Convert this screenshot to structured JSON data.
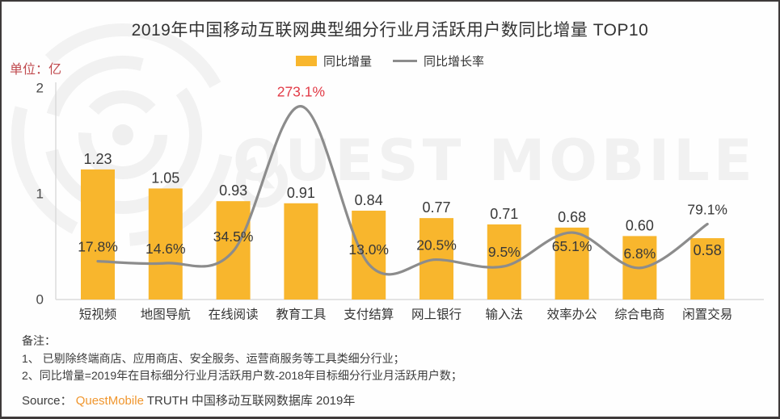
{
  "page": {
    "title": "2019年中国移动互联网典型细分行业月活跃用户数同比增量 TOP10",
    "unit_label": "单位：亿"
  },
  "legend": {
    "bar_label": "同比增量",
    "line_label": "同比增长率"
  },
  "watermark": {
    "text": "QUEST MOBILE"
  },
  "colors": {
    "bar": "#F8B62D",
    "line": "#8C8C8C",
    "highlight": "#E23B47",
    "unit_label": "#C04A4E",
    "brand_orange": "#F0962E",
    "axis": "#DBDBDB",
    "text": "#3C3C3C"
  },
  "chart_data": {
    "type": "bar",
    "combo": "bar+line",
    "title": "2019年中国移动互联网典型细分行业月活跃用户数同比增量 TOP10",
    "categories": [
      "短视频",
      "地图导航",
      "在线阅读",
      "教育工具",
      "支付结算",
      "网上银行",
      "输入法",
      "效率办公",
      "综合电商",
      "闲置交易"
    ],
    "series": [
      {
        "name": "同比增量",
        "type": "bar",
        "unit": "亿",
        "values": [
          1.23,
          1.05,
          0.93,
          0.91,
          0.84,
          0.77,
          0.71,
          0.68,
          0.6,
          0.58
        ],
        "labels": [
          "1.23",
          "1.05",
          "0.93",
          "0.91",
          "0.84",
          "0.77",
          "0.71",
          "0.68",
          "0.60",
          "0.58"
        ]
      },
      {
        "name": "同比增长率",
        "type": "line",
        "unit": "%",
        "values": [
          17.8,
          14.6,
          34.5,
          273.1,
          13.0,
          20.5,
          9.5,
          65.1,
          6.8,
          79.1
        ],
        "labels": [
          "17.8%",
          "14.6%",
          "34.5%",
          "273.1%",
          "13.0%",
          "20.5%",
          "9.5%",
          "65.1%",
          "6.8%",
          "79.1%"
        ],
        "highlight_index": 3
      }
    ],
    "ylabel": "单位：亿",
    "ylim": [
      0,
      2
    ],
    "yticks": [
      0,
      1,
      2
    ],
    "ytick_labels": [
      "0",
      "1",
      "2"
    ],
    "grid": false,
    "legend_position": "top-center"
  },
  "notes": {
    "heading": "备注：",
    "items": [
      "1、 已剔除终端商店、应用商店、安全服务、运营商服务等工具类细分行业；",
      "2、同比增量=2019年在目标细分行业月活跃用户数-2018年目标细分行业月活跃用户数；"
    ]
  },
  "source": {
    "prefix": "Source：",
    "brand": "QuestMobile",
    "suffix": " TRUTH 中国移动互联网数据库 2019年"
  }
}
